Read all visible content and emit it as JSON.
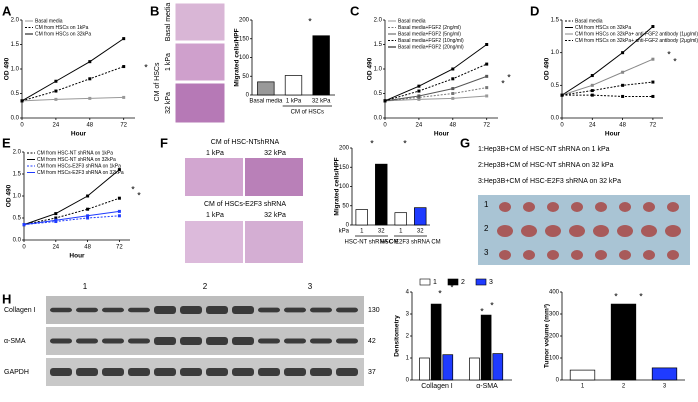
{
  "panels": [
    "A",
    "B",
    "C",
    "D",
    "E",
    "F",
    "G",
    "H"
  ],
  "images": {
    "b_rows": [
      "Basal media",
      "1 kPa",
      "32 kPa"
    ],
    "b_group": "CM of HSCs",
    "f_top": "CM of HSC-NTshRNA",
    "f_top_cols": [
      "1 kPa",
      "32 kPa"
    ],
    "f_bottom": "CM of HSCs-E2F3 shRNA",
    "f_bottom_cols": [
      "1 kPa",
      "32 kPa"
    ],
    "g_legend": [
      "1:Hep3B+CM of HSC-NT shRNA on 1 kPa",
      "2:Hep3B+CM of HSC-NT shRNA on 32 kPa",
      "3:Hep3B+CM of HSC-E2F3 shRNA on 32 kPa"
    ],
    "g_rows": [
      "1",
      "2",
      "3"
    ],
    "h_groups": [
      "1",
      "2",
      "3"
    ],
    "h_proteins": [
      "Collagen I",
      "α-SMA",
      "GAPDH"
    ],
    "h_sizes": [
      "130",
      "42",
      "37"
    ]
  },
  "chart_data": [
    {
      "type": "line",
      "xlabel": "Hour",
      "ylabel": "OD 490",
      "x": [
        0,
        24,
        48,
        72
      ],
      "xlim": [
        0,
        80
      ],
      "xticks": [
        0,
        24,
        48,
        72
      ],
      "ylim": [
        0,
        2
      ],
      "yticks": [
        {
          "value": 0,
          "label": "0.0"
        },
        0.5,
        {
          "value": 1,
          "label": "1.0"
        },
        1.5,
        {
          "value": 2,
          "label": "2.0"
        }
      ],
      "annotations": [
        "*"
      ],
      "series": [
        {
          "name": "Basal media",
          "color": "#999999",
          "dashed": false,
          "values": [
            0.35,
            0.38,
            0.4,
            0.42
          ]
        },
        {
          "name": "CM from HSCs on 1kPa",
          "color": "#000000",
          "dashed": true,
          "values": [
            0.35,
            0.55,
            0.8,
            1.05
          ]
        },
        {
          "name": "CM from HSCs on 32kPa",
          "color": "#000000",
          "dashed": false,
          "values": [
            0.35,
            0.75,
            1.15,
            1.62
          ]
        }
      ]
    },
    {
      "type": "bar",
      "ylabel": "Migrated cells/HPF",
      "categories": [
        "Basal media",
        "1 kPa",
        "32 kPa"
      ],
      "values": [
        35,
        52,
        158
      ],
      "colors": [
        "#999999",
        "#ffffff",
        "#000000"
      ],
      "ylim": [
        0,
        200
      ],
      "yticks": [
        0,
        50,
        100,
        150,
        200
      ],
      "groups": [
        "CM of HSCs"
      ],
      "annotations": [
        "*"
      ]
    },
    {
      "type": "line",
      "xlabel": "Hour",
      "ylabel": "OD 490",
      "x": [
        0,
        24,
        48,
        72
      ],
      "xlim": [
        0,
        80
      ],
      "xticks": [
        0,
        24,
        48,
        72
      ],
      "ylim": [
        0,
        2
      ],
      "yticks": [
        {
          "value": 0,
          "label": "0.0"
        },
        0.5,
        {
          "value": 1,
          "label": "1.0"
        },
        1.5,
        {
          "value": 2,
          "label": "2.0"
        }
      ],
      "annotations": [
        "*",
        "*"
      ],
      "series": [
        {
          "name": "Basal media",
          "color": "#999999",
          "dashed": false,
          "values": [
            0.35,
            0.38,
            0.4,
            0.45
          ]
        },
        {
          "name": "Basal media+FGF2 (2ng/ml)",
          "color": "#777777",
          "dashed": true,
          "values": [
            0.35,
            0.42,
            0.5,
            0.62
          ]
        },
        {
          "name": "Basal media+FGF2 (5ng/ml)",
          "color": "#555555",
          "dashed": false,
          "values": [
            0.35,
            0.45,
            0.6,
            0.85
          ]
        },
        {
          "name": "Basal media+FGF2 (10ng/ml)",
          "color": "#000000",
          "dashed": true,
          "values": [
            0.35,
            0.55,
            0.8,
            1.1
          ]
        },
        {
          "name": "Basal media+FGF2 (20ng/ml)",
          "color": "#000000",
          "dashed": false,
          "values": [
            0.35,
            0.65,
            1.0,
            1.5
          ]
        }
      ]
    },
    {
      "type": "line",
      "xlabel": "Hour",
      "ylabel": "OD 490",
      "x": [
        0,
        24,
        48,
        72
      ],
      "xlim": [
        0,
        80
      ],
      "xticks": [
        0,
        24,
        48,
        72
      ],
      "ylim": [
        0,
        1.5
      ],
      "yticks": [
        {
          "value": 0,
          "label": "0.0"
        },
        0.5,
        {
          "value": 1,
          "label": "1.0"
        },
        1.5
      ],
      "annotations": [
        "*",
        "*"
      ],
      "series": [
        {
          "name": "Basal media",
          "color": "#000000",
          "dashed": true,
          "values": [
            0.35,
            0.35,
            0.33,
            0.33
          ]
        },
        {
          "name": "CM from HSCs on 32kPa",
          "color": "#000000",
          "dashed": false,
          "values": [
            0.35,
            0.65,
            1.0,
            1.4
          ]
        },
        {
          "name": "CM from HSCs on 32kPa+ anti-FGF2 antibody (1μg/ml)",
          "color": "#888888",
          "dashed": false,
          "values": [
            0.35,
            0.5,
            0.7,
            0.9
          ]
        },
        {
          "name": "CM from HSCs on 32kPa+ anti-FGF2 antibody (2μg/ml)",
          "color": "#000000",
          "dashed": true,
          "values": [
            0.35,
            0.42,
            0.5,
            0.55
          ]
        }
      ]
    },
    {
      "type": "line",
      "xlabel": "Hour",
      "ylabel": "OD 490",
      "x": [
        0,
        24,
        48,
        72
      ],
      "xlim": [
        0,
        80
      ],
      "xticks": [
        0,
        24,
        48,
        72
      ],
      "ylim": [
        0,
        2
      ],
      "yticks": [
        {
          "value": 0,
          "label": "0.0"
        },
        0.5,
        {
          "value": 1,
          "label": "1.0"
        },
        1.5,
        {
          "value": 2,
          "label": "2.0"
        }
      ],
      "annotations": [
        "*",
        "*"
      ],
      "series": [
        {
          "name": "CM from HSC-NT shRNA on 1kPa",
          "color": "#000000",
          "dashed": true,
          "values": [
            0.35,
            0.5,
            0.7,
            0.95
          ]
        },
        {
          "name": "CM from HSC-NT shRNA on 32kPa",
          "color": "#000000",
          "dashed": false,
          "values": [
            0.35,
            0.6,
            1.0,
            1.6
          ]
        },
        {
          "name": "CM from HSCs-E2F3 shRNA on 1kPa",
          "color": "#1f3bff",
          "dashed": true,
          "values": [
            0.35,
            0.42,
            0.5,
            0.55
          ]
        },
        {
          "name": "CM from HSCs-E2F3 shRNA on 32kPa",
          "color": "#1f3bff",
          "dashed": false,
          "values": [
            0.35,
            0.45,
            0.55,
            0.65
          ]
        }
      ]
    },
    {
      "type": "bar",
      "ylabel": "Migrated cells/HPF",
      "categories": [
        "1",
        "32",
        "1",
        "32"
      ],
      "values": [
        40,
        158,
        32,
        45
      ],
      "colors": [
        "#ffffff",
        "#000000",
        "#ffffff",
        "#1f3bff"
      ],
      "ylim": [
        0,
        200
      ],
      "yticks": [
        0,
        50,
        100,
        150,
        200
      ],
      "unit": "kPa",
      "groups": [
        "HSC-NT shRNA CM",
        "HSC-E2F3 shRNA CM"
      ],
      "annotations": [
        "*",
        "*"
      ]
    },
    {
      "type": "grouped_bar",
      "ylabel": "Densitometry",
      "categories": [
        "Collagen I",
        "α-SMA"
      ],
      "ylim": [
        0,
        4
      ],
      "yticks": [
        0,
        1,
        2,
        3,
        4
      ],
      "legend": "top",
      "annotations": [
        "*",
        "*",
        "*",
        "*"
      ],
      "series": [
        {
          "name": "1",
          "color": "#ffffff",
          "values": [
            1.0,
            1.0
          ]
        },
        {
          "name": "2",
          "color": "#000000",
          "values": [
            3.45,
            2.95
          ]
        },
        {
          "name": "3",
          "color": "#1f3bff",
          "values": [
            1.15,
            1.2
          ]
        }
      ]
    },
    {
      "type": "bar",
      "ylabel": "Tumor volume (mm³)",
      "categories": [
        "1",
        "2",
        "3"
      ],
      "values": [
        45,
        345,
        55
      ],
      "colors": [
        "#ffffff",
        "#000000",
        "#1f3bff"
      ],
      "ylim": [
        0,
        400
      ],
      "yticks": [
        0,
        100,
        200,
        300,
        400
      ],
      "annotations": [
        "*",
        "*"
      ]
    }
  ]
}
